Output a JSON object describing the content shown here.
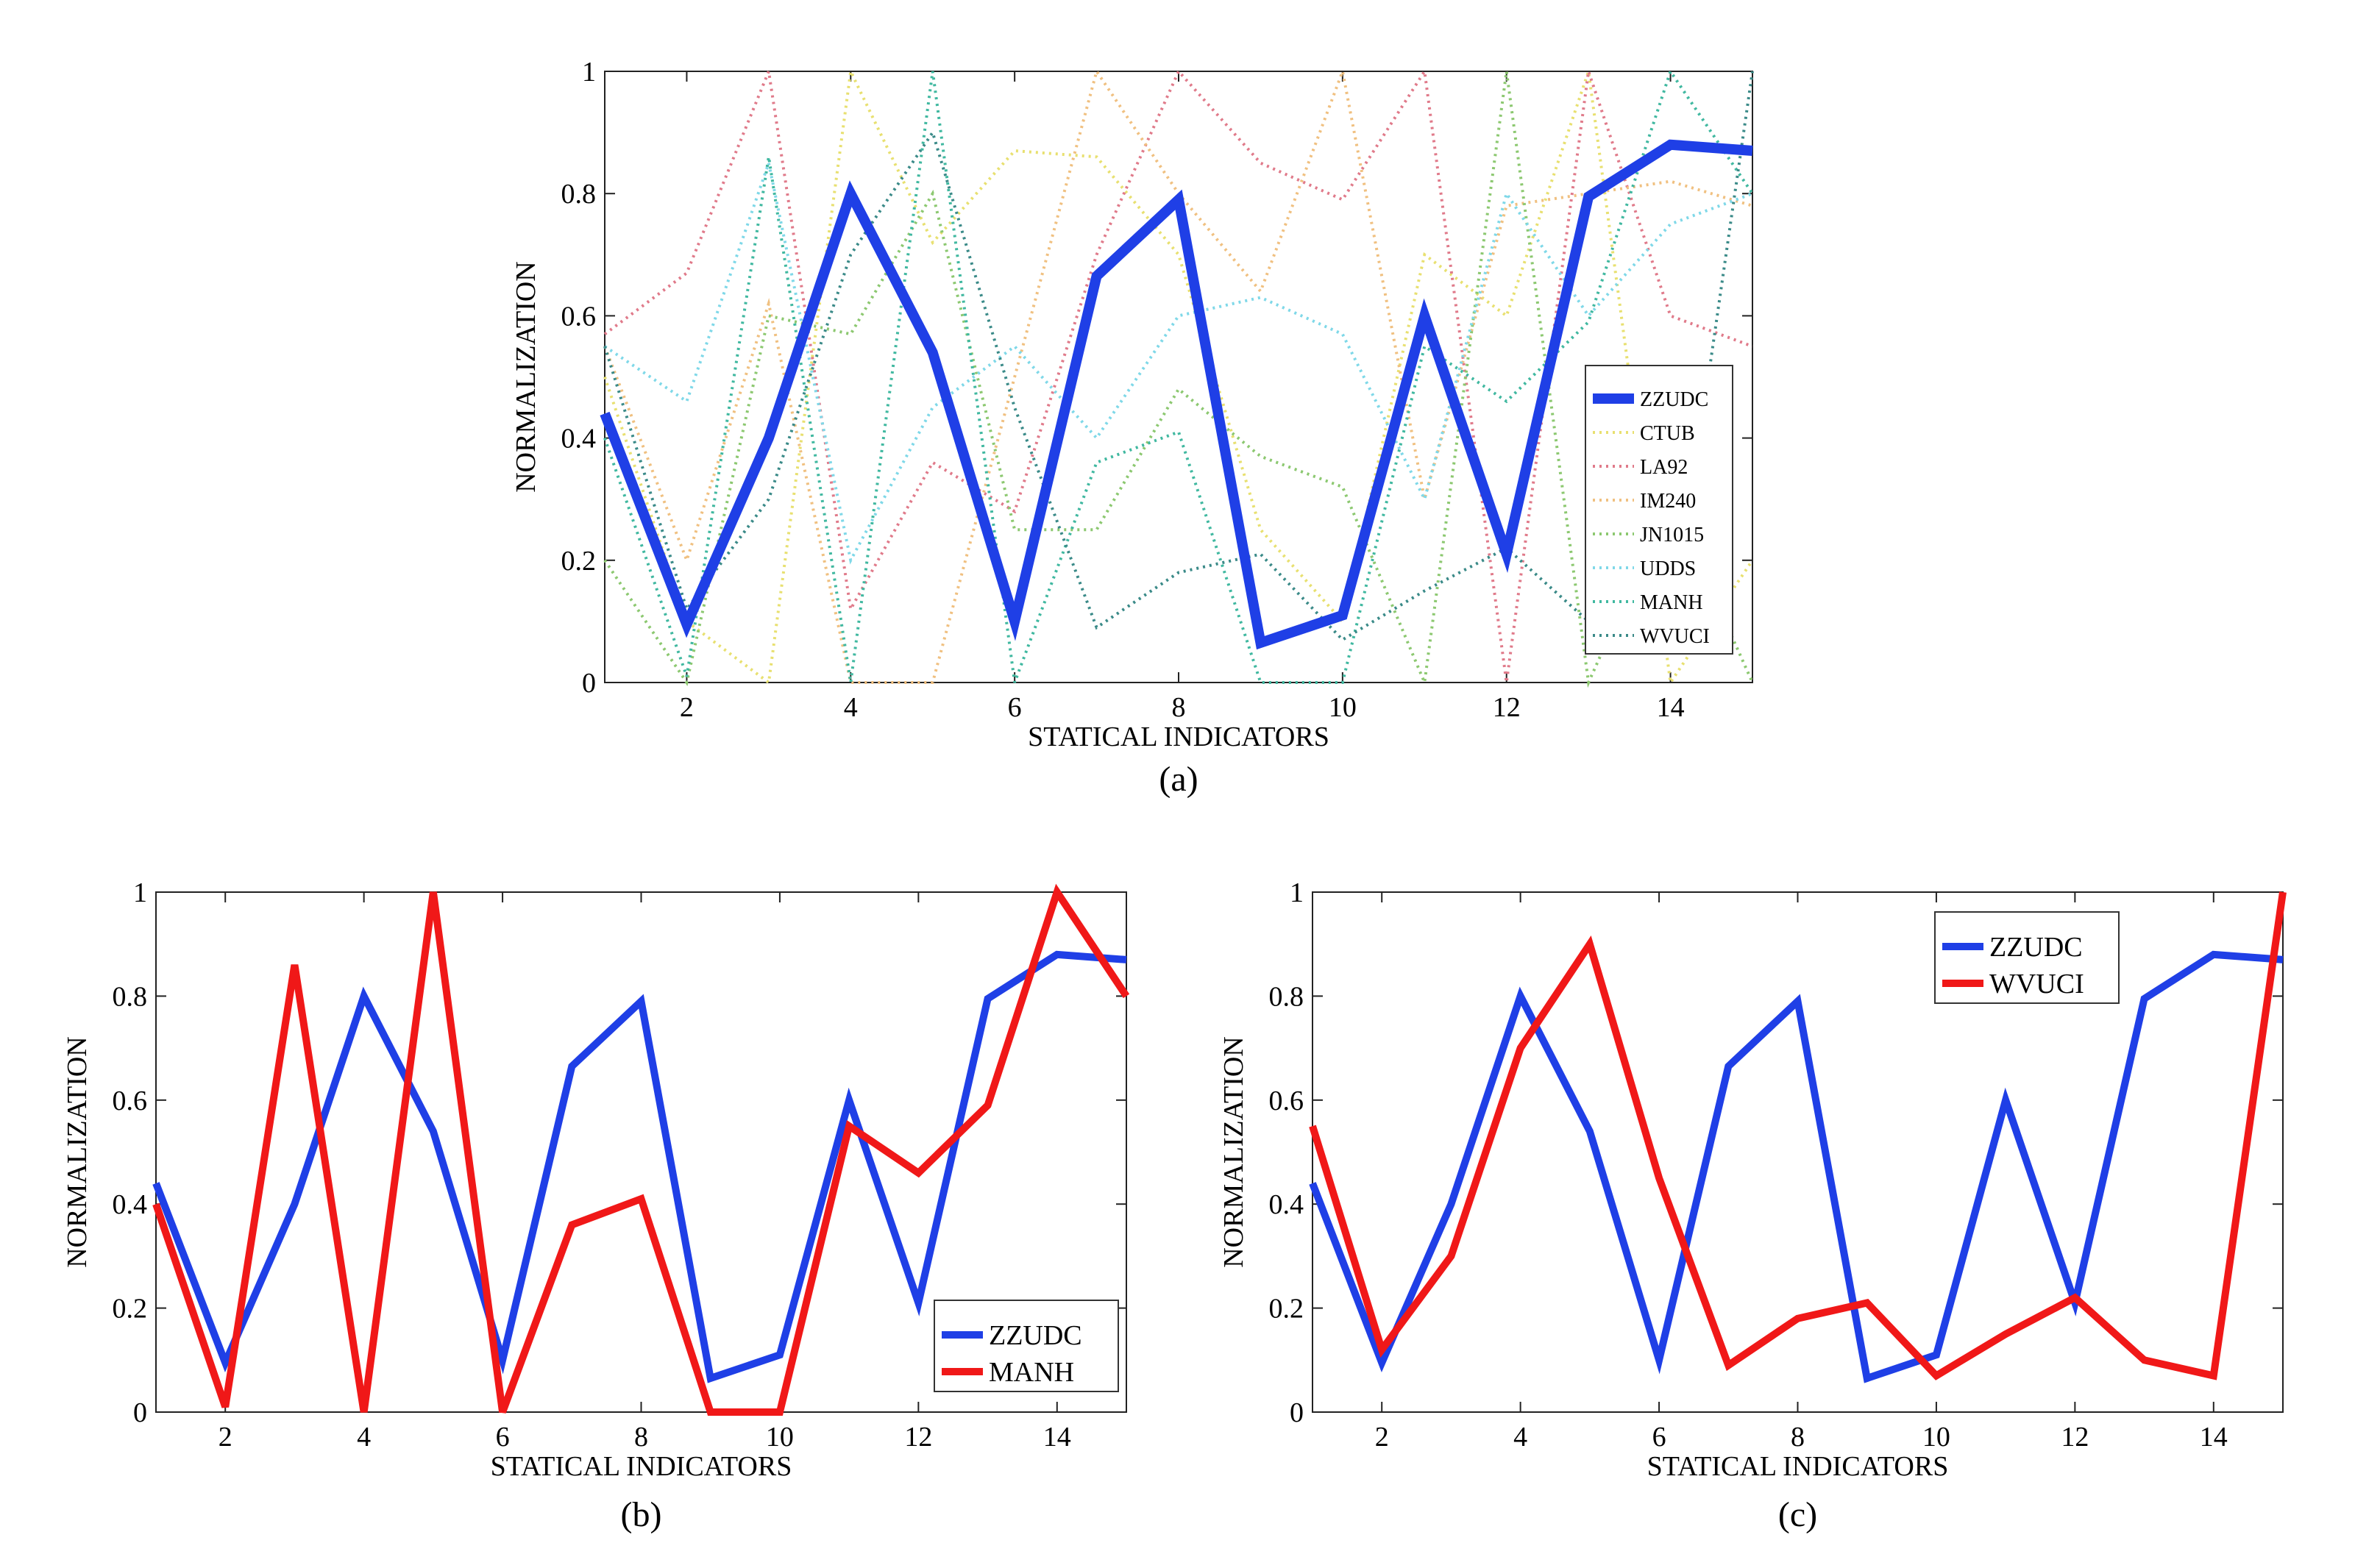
{
  "chart_data": [
    {
      "id": "a",
      "type": "line",
      "caption": "(a)",
      "xlabel": "STATICAL INDICATORS",
      "ylabel": "NORMALIZATION",
      "xlim": [
        1,
        15
      ],
      "ylim": [
        0,
        1
      ],
      "xticks": [
        2,
        4,
        6,
        8,
        10,
        12,
        14
      ],
      "yticks": [
        0,
        0.2,
        0.4,
        0.6,
        0.8,
        1
      ],
      "ytick_labels": [
        "0",
        "0.2",
        "0.4",
        "0.6",
        "0.8",
        "1"
      ],
      "x": [
        1,
        2,
        3,
        4,
        5,
        6,
        7,
        8,
        9,
        10,
        11,
        12,
        13,
        14,
        15
      ],
      "legend": "inside right",
      "series": [
        {
          "name": "ZZUDC",
          "color": "#1f3fe6",
          "style": "solid",
          "values": [
            0.44,
            0.095,
            0.4,
            0.8,
            0.54,
            0.1,
            0.665,
            0.79,
            0.065,
            0.11,
            0.6,
            0.21,
            0.795,
            0.88,
            0.87
          ]
        },
        {
          "name": "CTUB",
          "color": "#e8e070",
          "style": "dotted",
          "values": [
            0.5,
            0.1,
            0.0,
            1.0,
            0.72,
            0.87,
            0.86,
            0.7,
            0.25,
            0.1,
            0.7,
            0.6,
            1.0,
            0.0,
            0.2
          ]
        },
        {
          "name": "LA92",
          "color": "#e07a8a",
          "style": "dotted",
          "values": [
            0.57,
            0.67,
            1.0,
            0.12,
            0.36,
            0.28,
            0.7,
            1.0,
            0.85,
            0.79,
            1.0,
            0.0,
            1.0,
            0.6,
            0.55
          ]
        },
        {
          "name": "IM240",
          "color": "#f0c080",
          "style": "dotted",
          "values": [
            0.55,
            0.2,
            0.62,
            0.0,
            0.0,
            0.5,
            1.0,
            0.8,
            0.64,
            1.0,
            0.3,
            0.78,
            0.8,
            0.82,
            0.78
          ]
        },
        {
          "name": "JN1015",
          "color": "#8cc870",
          "style": "dotted",
          "values": [
            0.2,
            0.0,
            0.6,
            0.57,
            0.8,
            0.25,
            0.25,
            0.48,
            0.37,
            0.32,
            0.0,
            1.0,
            0.0,
            0.3,
            0.0
          ]
        },
        {
          "name": "UDDS",
          "color": "#7fd8e8",
          "style": "dotted",
          "values": [
            0.55,
            0.46,
            0.85,
            0.2,
            0.45,
            0.55,
            0.4,
            0.6,
            0.63,
            0.57,
            0.3,
            0.8,
            0.6,
            0.75,
            0.8
          ]
        },
        {
          "name": "MANH",
          "color": "#40b8a0",
          "style": "dotted",
          "values": [
            0.4,
            0.01,
            0.86,
            0.0,
            1.0,
            0.0,
            0.36,
            0.41,
            0.0,
            0.0,
            0.55,
            0.46,
            0.59,
            1.0,
            0.8
          ]
        },
        {
          "name": "WVUCI",
          "color": "#3a8a88",
          "style": "dotted",
          "values": [
            0.55,
            0.12,
            0.3,
            0.7,
            0.9,
            0.45,
            0.09,
            0.18,
            0.21,
            0.07,
            0.15,
            0.22,
            0.1,
            0.07,
            1.0
          ]
        }
      ]
    },
    {
      "id": "b",
      "type": "line",
      "caption": "(b)",
      "xlabel": "STATICAL INDICATORS",
      "ylabel": "NORMALIZATION",
      "xlim": [
        1,
        15
      ],
      "ylim": [
        0,
        1
      ],
      "xticks": [
        2,
        4,
        6,
        8,
        10,
        12,
        14
      ],
      "yticks": [
        0,
        0.2,
        0.4,
        0.6,
        0.8,
        1
      ],
      "ytick_labels": [
        "0",
        "0.2",
        "0.4",
        "0.6",
        "0.8",
        "1"
      ],
      "x": [
        1,
        2,
        3,
        4,
        5,
        6,
        7,
        8,
        9,
        10,
        11,
        12,
        13,
        14,
        15
      ],
      "legend": "bottom-right",
      "series": [
        {
          "name": "ZZUDC",
          "color": "#1f3fe6",
          "style": "solid",
          "values": [
            0.44,
            0.095,
            0.4,
            0.8,
            0.54,
            0.1,
            0.665,
            0.79,
            0.065,
            0.11,
            0.6,
            0.21,
            0.795,
            0.88,
            0.87
          ]
        },
        {
          "name": "MANH",
          "color": "#f01818",
          "style": "solid",
          "values": [
            0.4,
            0.01,
            0.86,
            0.0,
            1.0,
            0.0,
            0.36,
            0.41,
            0.0,
            0.0,
            0.55,
            0.46,
            0.59,
            1.0,
            0.8
          ]
        }
      ]
    },
    {
      "id": "c",
      "type": "line",
      "caption": "(c)",
      "xlabel": "STATICAL INDICATORS",
      "ylabel": "NORMALIZATION",
      "xlim": [
        1,
        15
      ],
      "ylim": [
        0,
        1
      ],
      "xticks": [
        2,
        4,
        6,
        8,
        10,
        12,
        14
      ],
      "yticks": [
        0,
        0.2,
        0.4,
        0.6,
        0.8,
        1
      ],
      "ytick_labels": [
        "0",
        "0.2",
        "0.4",
        "0.6",
        "0.8",
        "1"
      ],
      "x": [
        1,
        2,
        3,
        4,
        5,
        6,
        7,
        8,
        9,
        10,
        11,
        12,
        13,
        14,
        15
      ],
      "legend": "top-right",
      "series": [
        {
          "name": "ZZUDC",
          "color": "#1f3fe6",
          "style": "solid",
          "values": [
            0.44,
            0.095,
            0.4,
            0.8,
            0.54,
            0.1,
            0.665,
            0.79,
            0.065,
            0.11,
            0.6,
            0.21,
            0.795,
            0.88,
            0.87
          ]
        },
        {
          "name": "WVUCI",
          "color": "#f01818",
          "style": "solid",
          "values": [
            0.55,
            0.12,
            0.3,
            0.7,
            0.9,
            0.45,
            0.09,
            0.18,
            0.21,
            0.07,
            0.15,
            0.22,
            0.1,
            0.07,
            1.0
          ]
        }
      ]
    }
  ]
}
